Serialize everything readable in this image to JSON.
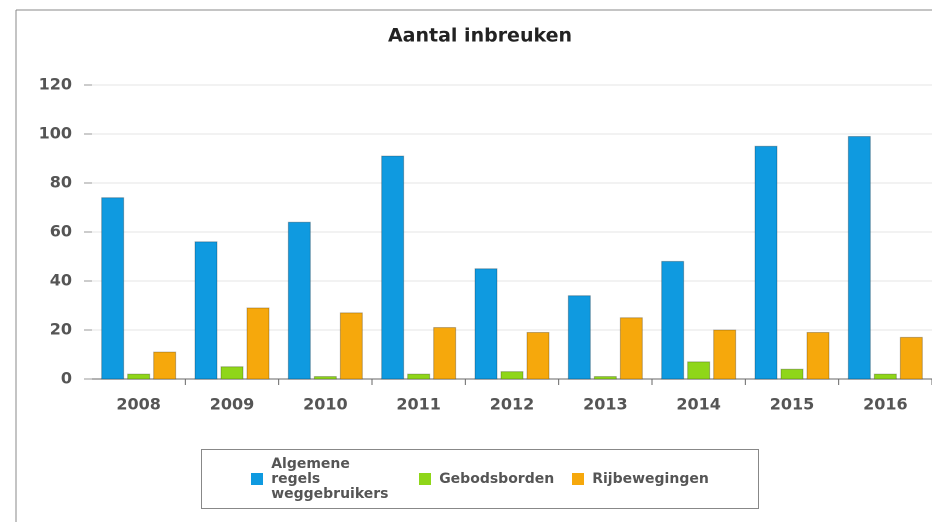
{
  "chart_data": {
    "type": "bar",
    "title": "Aantal inbreuken",
    "categories": [
      "2008",
      "2009",
      "2010",
      "2011",
      "2012",
      "2013",
      "2014",
      "2015",
      "2016"
    ],
    "series": [
      {
        "name": "Algemene regels weggebruikers",
        "color": "#0f9ae0",
        "values": [
          74,
          56,
          64,
          91,
          45,
          34,
          48,
          95,
          99
        ]
      },
      {
        "name": "Gebodsborden",
        "color": "#8fd619",
        "values": [
          2,
          5,
          1,
          2,
          3,
          1,
          7,
          4,
          2
        ]
      },
      {
        "name": "Rijbewegingen",
        "color": "#f6a80c",
        "values": [
          11,
          29,
          27,
          21,
          19,
          25,
          20,
          19,
          17
        ]
      }
    ],
    "ylim": [
      0,
      120
    ],
    "yticks": [
      0,
      20,
      40,
      60,
      80,
      100,
      120
    ],
    "grid": true,
    "legend": "bottom"
  }
}
